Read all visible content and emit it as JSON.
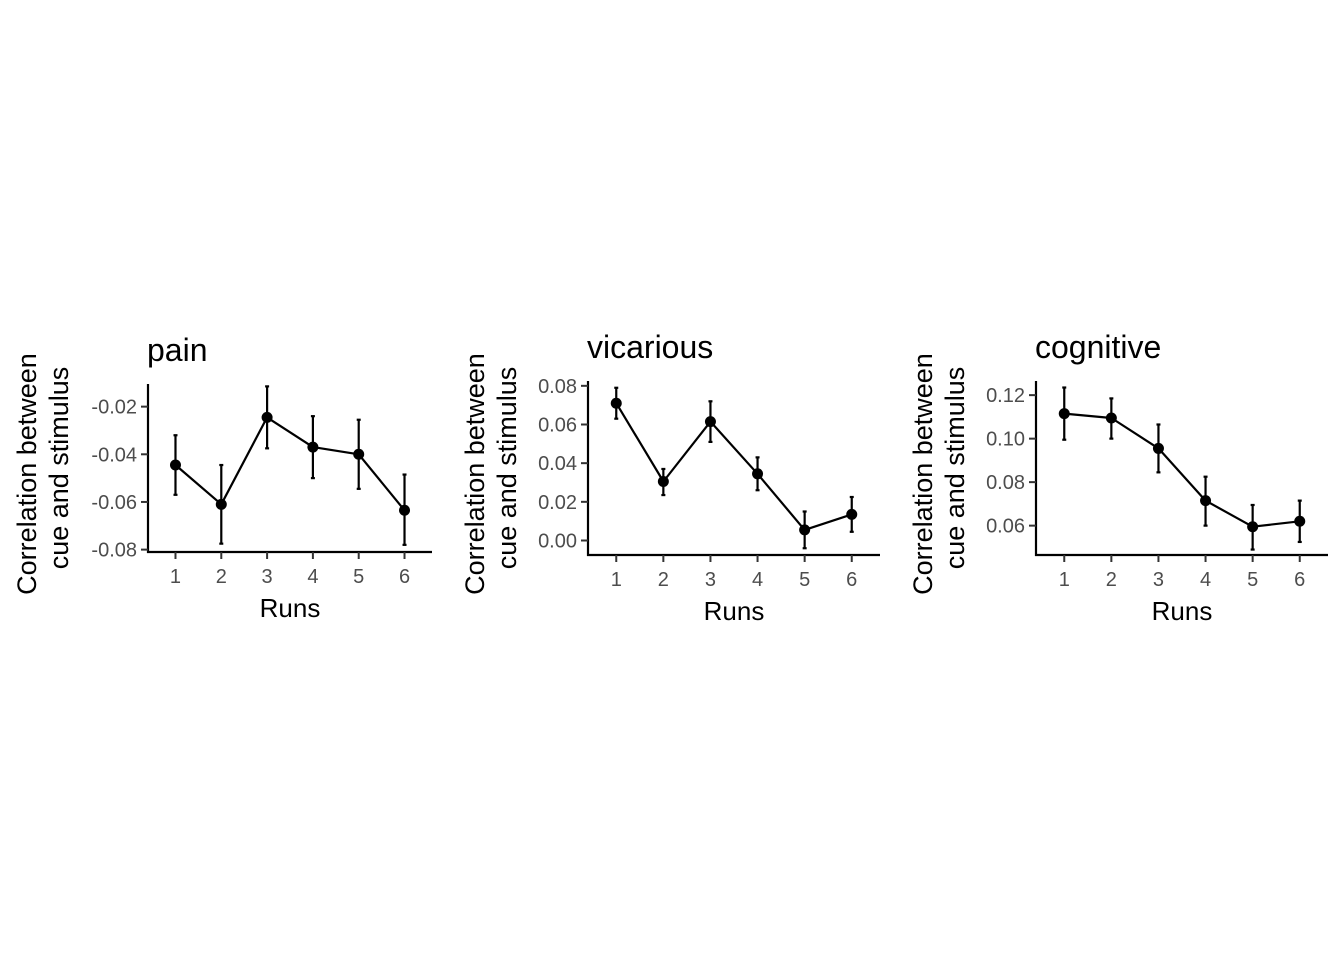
{
  "chart_data": [
    {
      "type": "line",
      "title": "pain",
      "xlabel": "Runs",
      "ylabel_lines": [
        "Correlation between",
        "cue and stimulus"
      ],
      "x": [
        1,
        2,
        3,
        4,
        5,
        6
      ],
      "x_tick_labels": [
        "1",
        "2",
        "3",
        "4",
        "5",
        "6"
      ],
      "y": [
        -0.0445,
        -0.061,
        -0.0245,
        -0.037,
        -0.04,
        -0.0635
      ],
      "y_lower": [
        -0.057,
        -0.0775,
        -0.0375,
        -0.05,
        -0.0545,
        -0.078
      ],
      "y_upper": [
        -0.032,
        -0.0445,
        -0.0115,
        -0.024,
        -0.0255,
        -0.0485
      ],
      "y_ticks": [
        -0.08,
        -0.06,
        -0.04,
        -0.02
      ],
      "y_tick_labels": [
        "-0.08",
        "-0.06",
        "-0.04",
        "-0.02"
      ],
      "xlim": [
        0.4,
        6.6
      ],
      "ylim": [
        -0.081,
        -0.0105
      ],
      "grid": false,
      "legend": "none",
      "color": "#000000"
    },
    {
      "type": "line",
      "title": "vicarious",
      "xlabel": "Runs",
      "ylabel_lines": [
        "Correlation between",
        "cue and stimulus"
      ],
      "x": [
        1,
        2,
        3,
        4,
        5,
        6
      ],
      "x_tick_labels": [
        "1",
        "2",
        "3",
        "4",
        "5",
        "6"
      ],
      "y": [
        0.071,
        0.0305,
        0.0615,
        0.0345,
        0.0055,
        0.0135
      ],
      "y_lower": [
        0.063,
        0.0235,
        0.051,
        0.026,
        -0.004,
        0.0045
      ],
      "y_upper": [
        0.079,
        0.037,
        0.072,
        0.043,
        0.015,
        0.0225
      ],
      "y_ticks": [
        0.0,
        0.02,
        0.04,
        0.06,
        0.08
      ],
      "y_tick_labels": [
        "0.00",
        "0.02",
        "0.04",
        "0.06",
        "0.08"
      ],
      "xlim": [
        0.4,
        6.6
      ],
      "ylim": [
        -0.0075,
        0.0825
      ],
      "grid": false,
      "legend": "none",
      "color": "#000000"
    },
    {
      "type": "line",
      "title": "cognitive",
      "xlabel": "Runs",
      "ylabel_lines": [
        "Correlation between",
        "cue and stimulus"
      ],
      "x": [
        1,
        2,
        3,
        4,
        5,
        6
      ],
      "x_tick_labels": [
        "1",
        "2",
        "3",
        "4",
        "5",
        "6"
      ],
      "y": [
        0.1115,
        0.1095,
        0.0955,
        0.0715,
        0.0595,
        0.062
      ],
      "y_lower": [
        0.0995,
        0.1,
        0.0845,
        0.06,
        0.049,
        0.0525
      ],
      "y_upper": [
        0.1235,
        0.1185,
        0.1065,
        0.0825,
        0.0695,
        0.0715
      ],
      "y_ticks": [
        0.06,
        0.08,
        0.1,
        0.12
      ],
      "y_tick_labels": [
        "0.06",
        "0.08",
        "0.10",
        "0.12"
      ],
      "xlim": [
        0.4,
        6.6
      ],
      "ylim": [
        0.0465,
        0.1265
      ],
      "grid": false,
      "legend": "none",
      "color": "#000000"
    }
  ]
}
